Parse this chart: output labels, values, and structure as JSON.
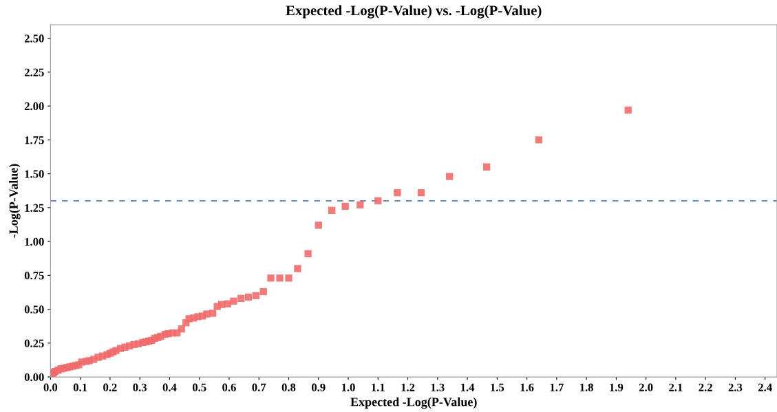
{
  "chart_data": {
    "type": "scatter",
    "title": "Expected -Log(P-Value) vs. -Log(P-Value)",
    "xlabel": "Expected -Log(P-Value)",
    "ylabel": "-Log(P-Value)",
    "marker": "square",
    "grid": false,
    "legend": false,
    "xlim": [
      0,
      2.44
    ],
    "ylim": [
      0,
      2.6
    ],
    "xticks": [
      {
        "value": 0,
        "label": "0.0"
      },
      0.1,
      0.2,
      0.3,
      0.4,
      0.5,
      0.6,
      0.7,
      0.8,
      0.9,
      {
        "value": 1,
        "label": "1.0"
      },
      1.1,
      1.2,
      1.3,
      1.4,
      1.5,
      1.6,
      1.7,
      1.8,
      1.9,
      {
        "value": 2,
        "label": "2.0"
      },
      2.1,
      2.2,
      2.3,
      2.4
    ],
    "yticks": [
      {
        "value": 0,
        "label": "0.00"
      },
      0.25,
      {
        "value": 0.5,
        "label": "0.50"
      },
      0.75,
      {
        "value": 1,
        "label": "1.00"
      },
      1.25,
      {
        "value": 1.5,
        "label": "1.50"
      },
      1.75,
      {
        "value": 2,
        "label": "2.00"
      },
      2.25,
      {
        "value": 2.5,
        "label": "2.50"
      }
    ],
    "ref_lines": [
      {
        "axis": "y",
        "value": 1.3,
        "label": null,
        "color": "#6a8bb5",
        "line_style": "dashed"
      }
    ],
    "series": [
      {
        "color": "#f06b6b",
        "x": [
          0.005,
          0.01,
          0.015,
          0.025,
          0.035,
          0.045,
          0.055,
          0.065,
          0.075,
          0.085,
          0.095,
          0.105,
          0.12,
          0.13,
          0.145,
          0.16,
          0.175,
          0.19,
          0.2,
          0.21,
          0.22,
          0.235,
          0.25,
          0.265,
          0.28,
          0.295,
          0.31,
          0.32,
          0.33,
          0.34,
          0.35,
          0.36,
          0.37,
          0.385,
          0.395,
          0.41,
          0.425,
          0.44,
          0.455,
          0.465,
          0.48,
          0.495,
          0.51,
          0.525,
          0.545,
          0.56,
          0.575,
          0.595,
          0.615,
          0.64,
          0.665,
          0.69,
          0.715,
          0.74,
          0.77,
          0.8,
          0.83,
          0.865,
          0.9,
          0.945,
          0.99,
          1.04,
          1.1,
          1.165,
          1.245,
          1.34,
          1.465,
          1.64,
          1.94
        ],
        "values": [
          0.02,
          0.03,
          0.04,
          0.05,
          0.06,
          0.065,
          0.07,
          0.075,
          0.08,
          0.085,
          0.09,
          0.11,
          0.115,
          0.12,
          0.13,
          0.145,
          0.155,
          0.165,
          0.175,
          0.185,
          0.195,
          0.21,
          0.22,
          0.23,
          0.24,
          0.245,
          0.255,
          0.26,
          0.265,
          0.27,
          0.285,
          0.29,
          0.3,
          0.315,
          0.32,
          0.325,
          0.325,
          0.355,
          0.4,
          0.43,
          0.435,
          0.445,
          0.45,
          0.465,
          0.47,
          0.52,
          0.535,
          0.54,
          0.56,
          0.58,
          0.59,
          0.6,
          0.63,
          0.73,
          0.73,
          0.73,
          0.8,
          0.91,
          1.12,
          1.23,
          1.26,
          1.27,
          1.3,
          1.36,
          1.36,
          1.48,
          1.55,
          1.75,
          1.97
        ]
      }
    ]
  }
}
